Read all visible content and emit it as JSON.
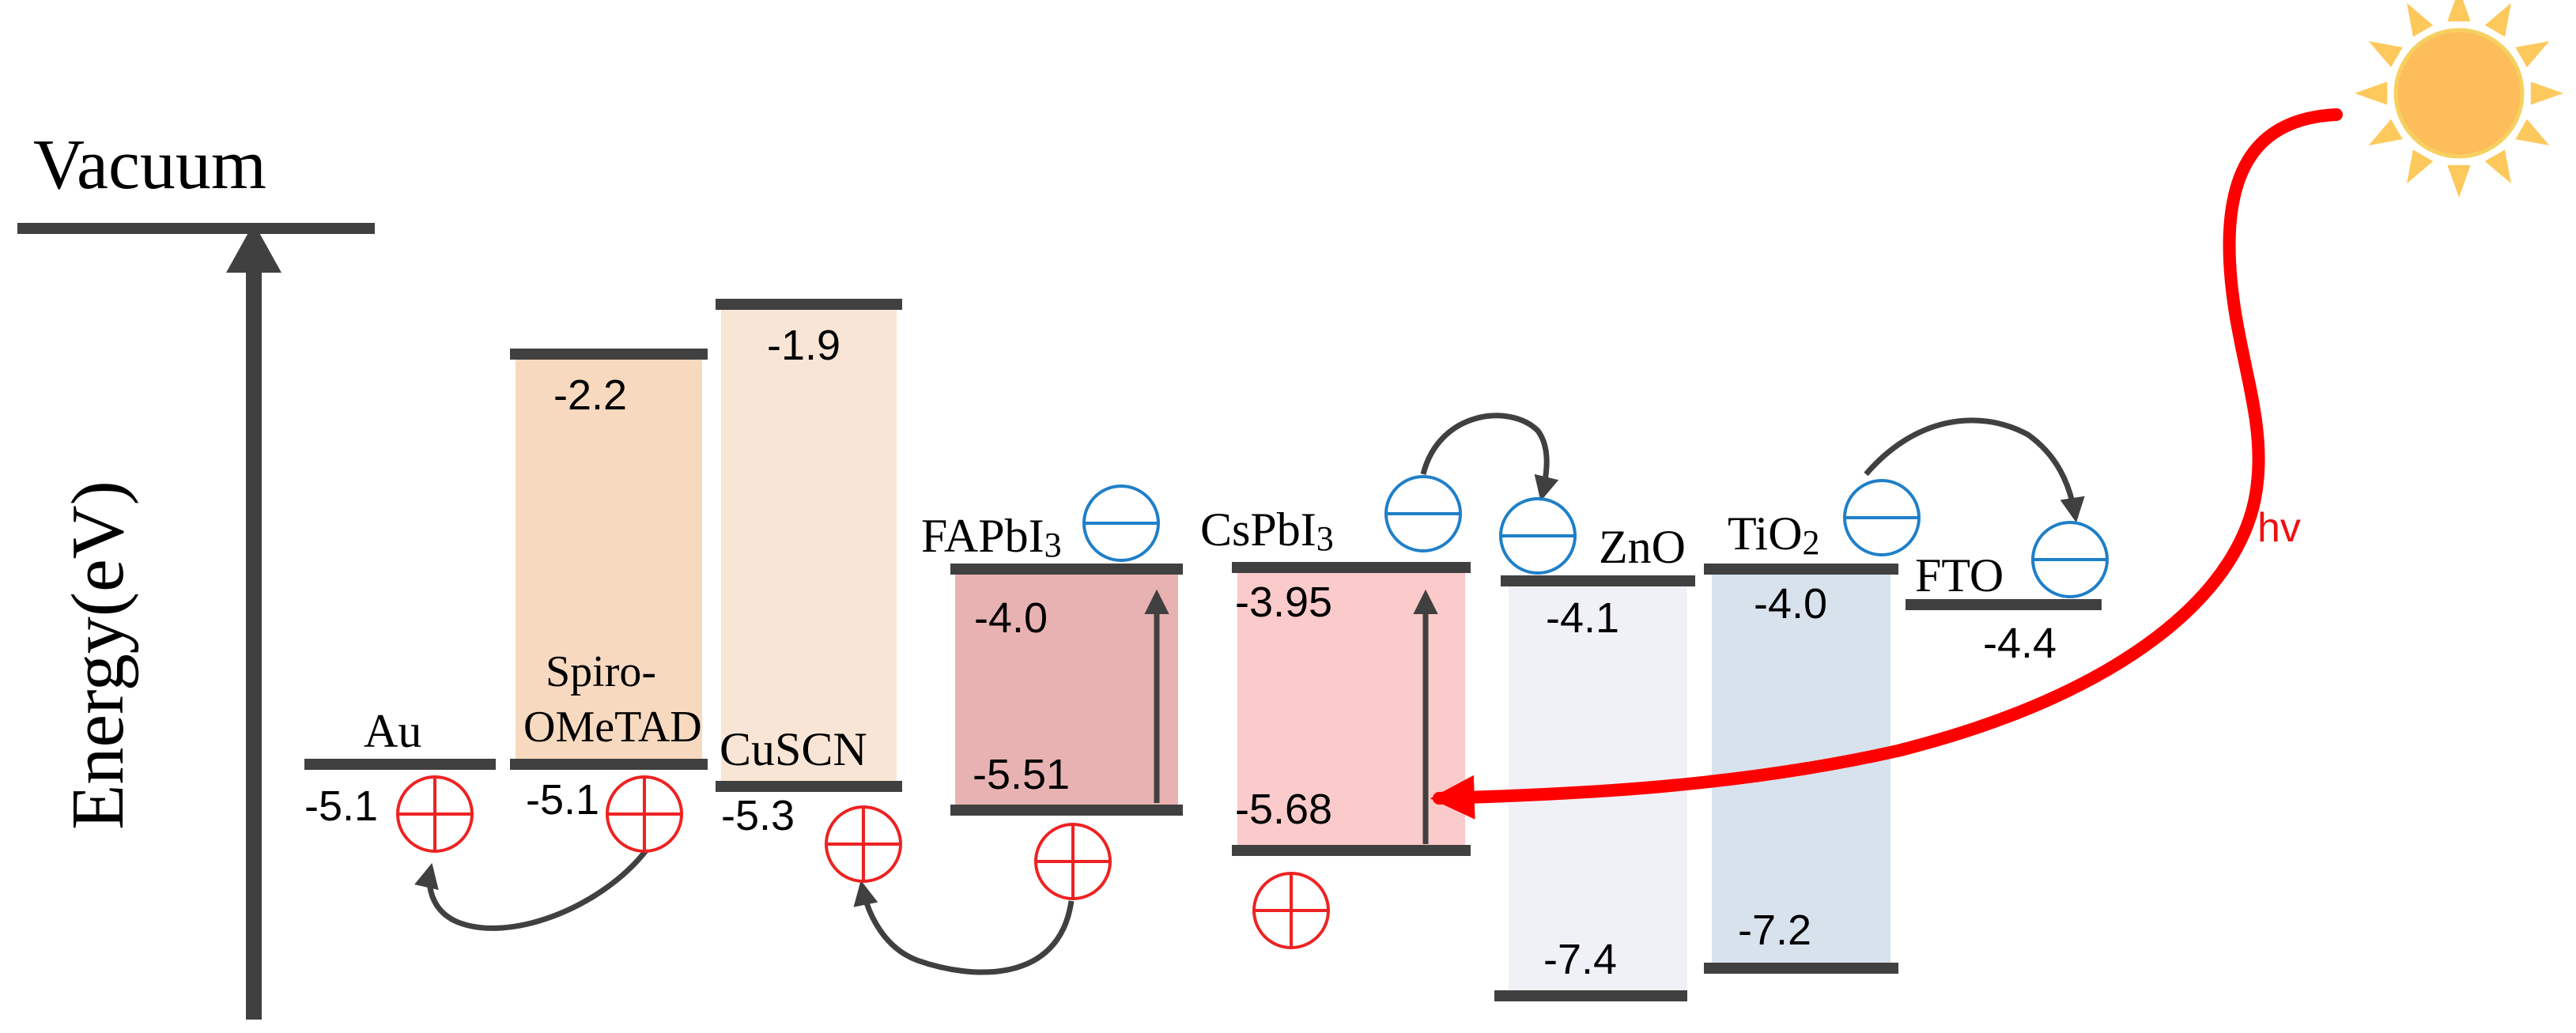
{
  "diagram": {
    "vacuum_label": "Vacuum",
    "axis_label": "Energy(eV)",
    "light_label": "hv",
    "colors": {
      "axis": "#404040",
      "level_bar": "#404040",
      "spiro": "#f7d9bf",
      "cuscn": "#f8e5d5",
      "fapbi3": "#e9b2b2",
      "cspbi3": "#fbcaca",
      "zno": "#f0f1f6",
      "tio2": "#d8e2ec",
      "hole": "#ee2222",
      "electron": "#1f7fc8",
      "light": "#ff0000",
      "sun_core": "#fdbd5a",
      "sun_rays": "#fdc95d"
    }
  },
  "layers": {
    "au": {
      "name": "Au",
      "level": "-5.1"
    },
    "spiro": {
      "name_line1": "Spiro-",
      "name_line2": "OMeTAD",
      "lumo": "-2.2",
      "homo": "-5.1"
    },
    "cuscn": {
      "name": "CuSCN",
      "lumo": "-1.9",
      "homo": "-5.3"
    },
    "fapbi3": {
      "name": "FAPbI",
      "sub": "3",
      "cb": "-4.0",
      "vb": "-5.51"
    },
    "cspbi3": {
      "name": "CsPbI",
      "sub": "3",
      "cb": "-3.95",
      "vb": "-5.68"
    },
    "zno": {
      "name": "ZnO",
      "cb": "-4.1",
      "vb": "-7.4"
    },
    "tio2": {
      "name": "TiO",
      "sub": "2",
      "cb": "-4.0",
      "vb": "-7.2"
    },
    "fto": {
      "name": "FTO",
      "level": "-4.4"
    }
  }
}
